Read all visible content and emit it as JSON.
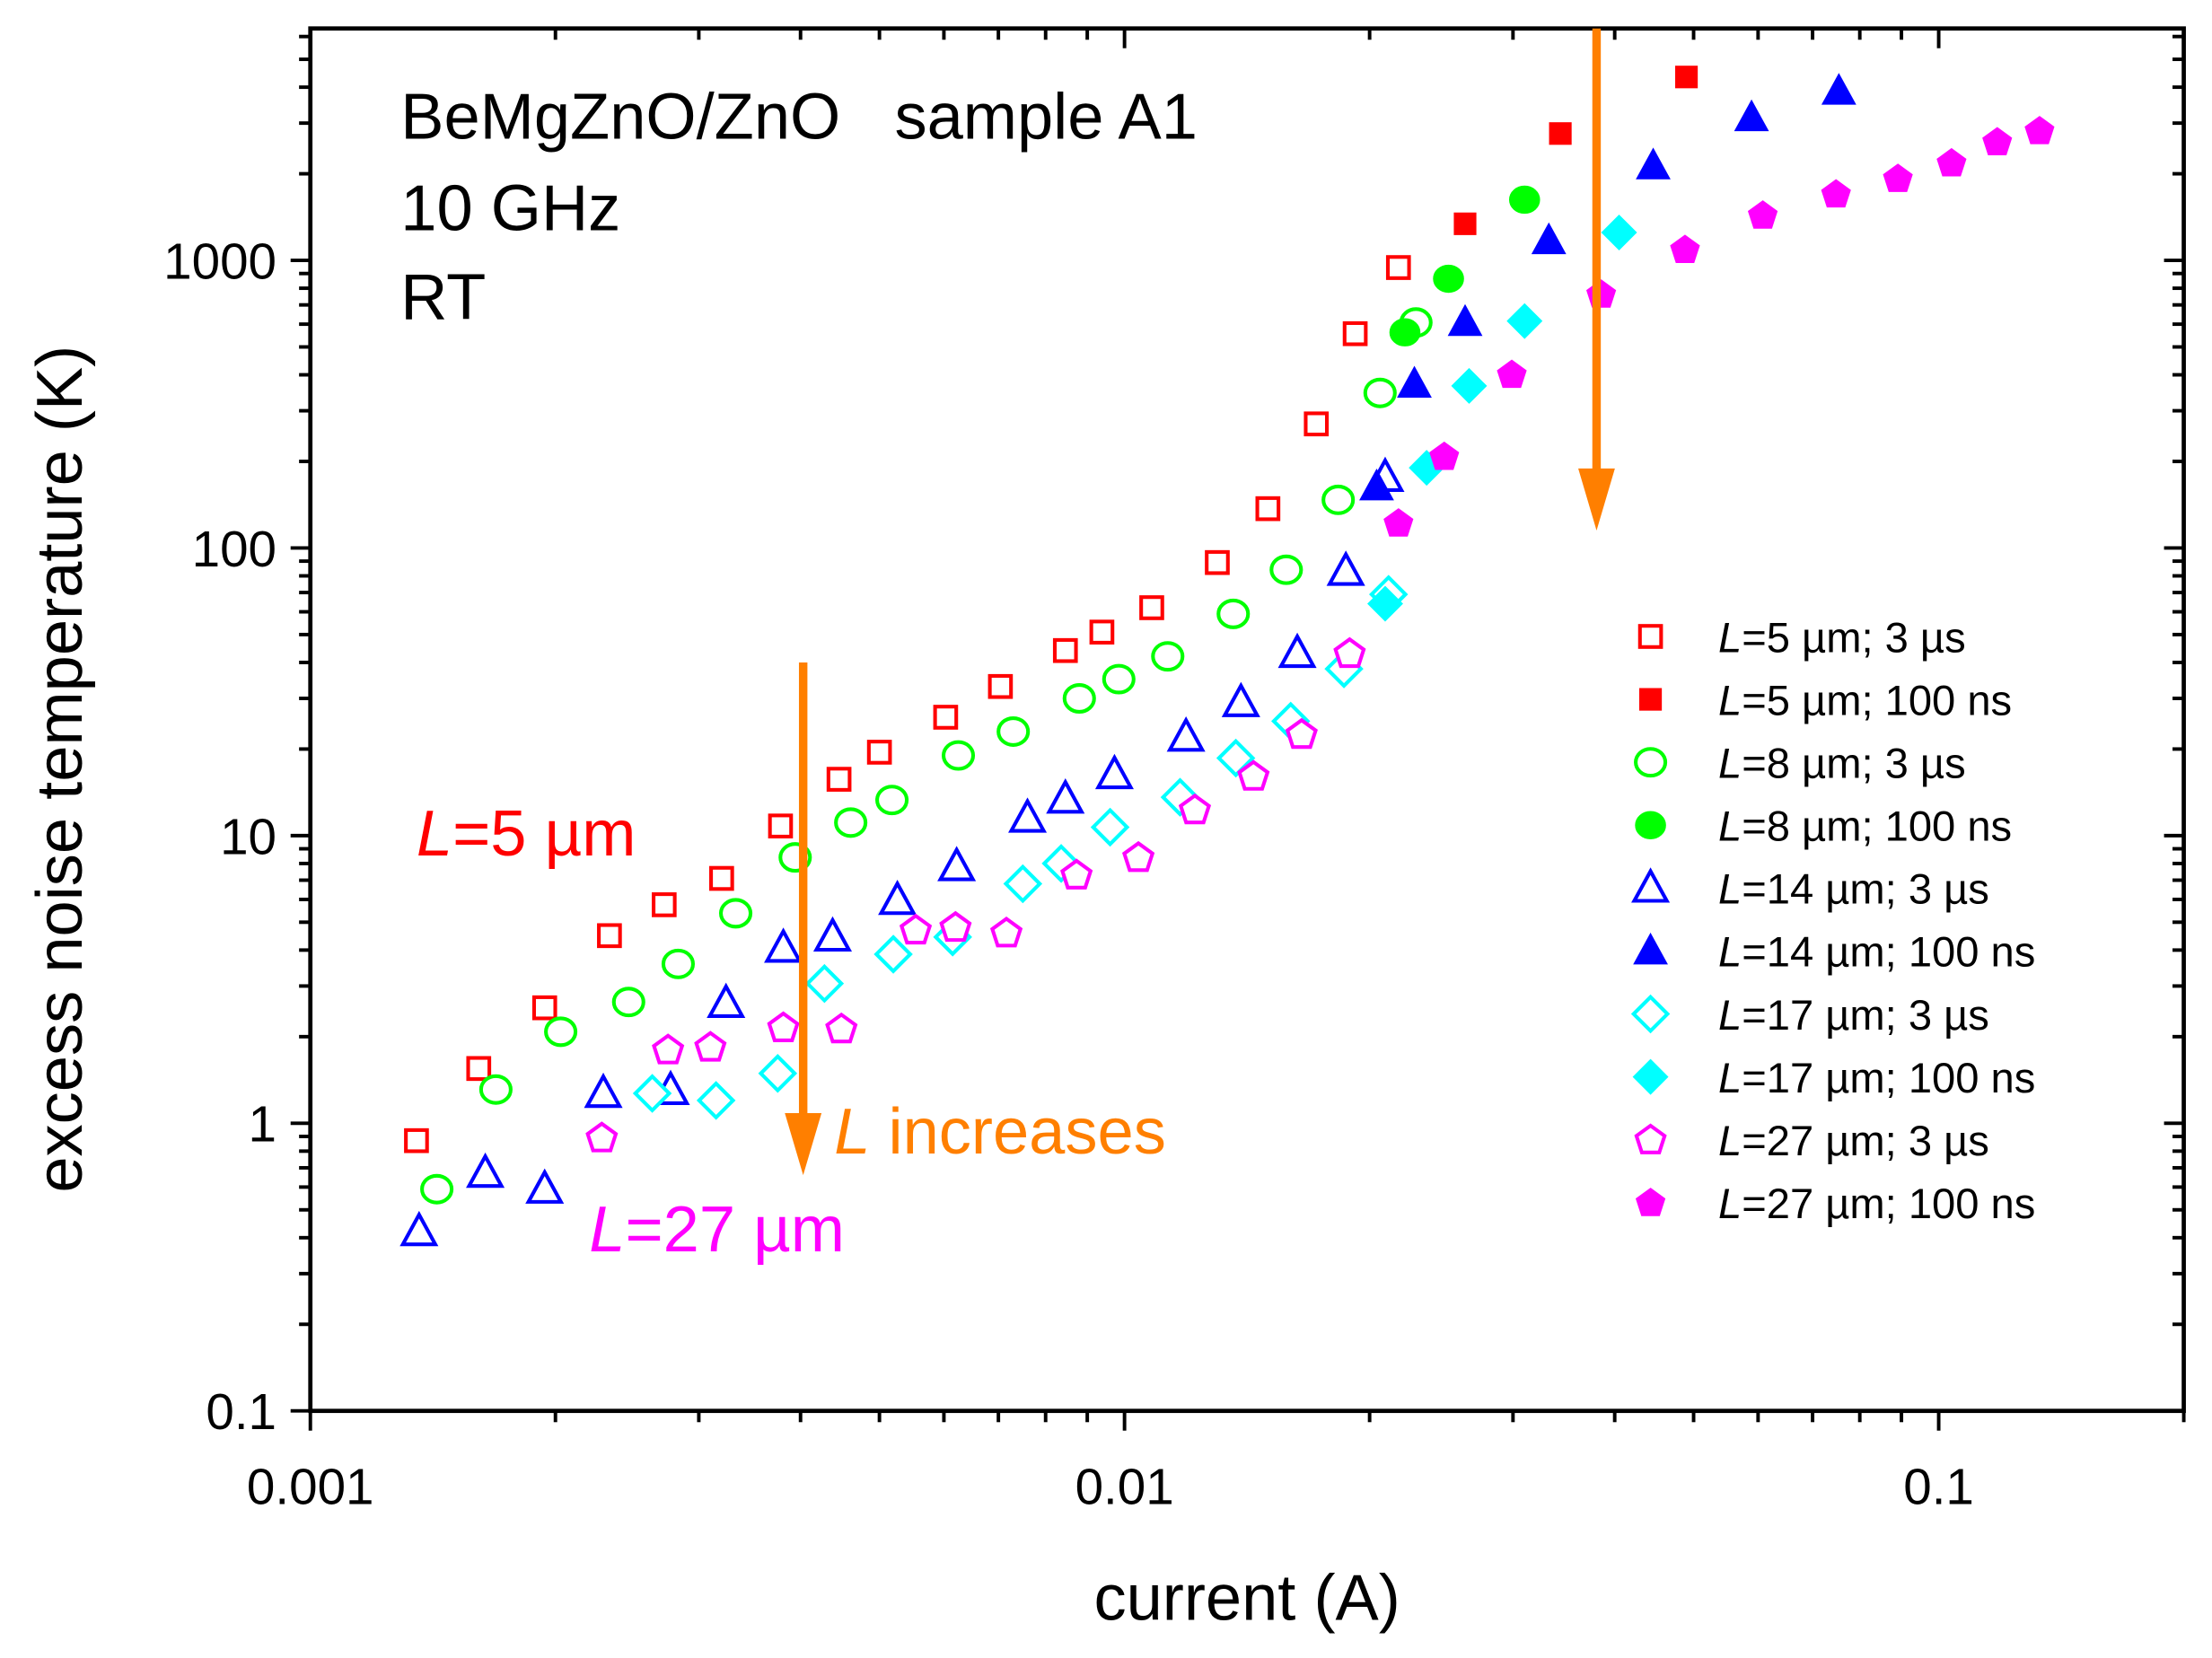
{
  "chart_data": {
    "type": "scatter",
    "xlabel": "current (A)",
    "ylabel": "excess noise temperature (K)",
    "xscale": "log",
    "yscale": "log",
    "xlim": [
      0.001,
      0.2
    ],
    "ylim": [
      0.1,
      6400
    ],
    "xticks": [
      {
        "v": 0.001,
        "label": "0.001"
      },
      {
        "v": 0.01,
        "label": "0.01"
      },
      {
        "v": 0.1,
        "label": "0.1"
      }
    ],
    "yticks": [
      {
        "v": 0.1,
        "label": "0.1"
      },
      {
        "v": 1,
        "label": "1"
      },
      {
        "v": 10,
        "label": "10"
      },
      {
        "v": 100,
        "label": "100"
      },
      {
        "v": 1000,
        "label": "1000"
      }
    ],
    "grid": false,
    "legend_position": "right",
    "title_lines": [
      "BeMgZnO/ZnO  sample A1",
      "10 GHz",
      "RT"
    ],
    "annotations": [
      {
        "italic": "L",
        "text": "=5 µm",
        "color": "#ff0000",
        "x": 0.00135,
        "y": 10
      },
      {
        "italic": "L",
        "text": " increases",
        "color": "#ff7f00",
        "x": 0.0044,
        "y": 0.92
      },
      {
        "italic": "L",
        "text": "=27 µm",
        "color": "#ff00ff",
        "x": 0.0022,
        "y": 0.42
      }
    ],
    "arrows": [
      {
        "x": 0.00403,
        "y_from": 40,
        "y_to": 0.66,
        "color": "#ff7f00"
      },
      {
        "x": 0.038,
        "y_from": 6400,
        "y_to": 115,
        "color": "#ff7f00"
      }
    ],
    "series": [
      {
        "name": "L=5 µm; 3 µs",
        "marker": "square",
        "filled": false,
        "color": "#ff0000",
        "x": [
          0.00135,
          0.00161,
          0.00194,
          0.00233,
          0.00272,
          0.0032,
          0.00378,
          0.00446,
          0.005,
          0.00603,
          0.00704,
          0.00846,
          0.00938,
          0.0108,
          0.013,
          0.015,
          0.0172,
          0.0192,
          0.0217
        ],
        "y": [
          0.87,
          1.55,
          2.52,
          4.49,
          5.75,
          7.1,
          10.8,
          15.7,
          19.5,
          25.8,
          33,
          44,
          51,
          62,
          89,
          137,
          270,
          556,
          944
        ]
      },
      {
        "name": "L=5 µm; 100 ns",
        "marker": "square",
        "filled": true,
        "color": "#ff0000",
        "x": [
          0.0262,
          0.0343,
          0.049
        ],
        "y": [
          1340,
          2760,
          4340
        ]
      },
      {
        "name": "L=8 µm; 3 µs",
        "marker": "circle",
        "filled": false,
        "color": "#00ff00",
        "x": [
          0.00143,
          0.00169,
          0.00203,
          0.00246,
          0.00283,
          0.00333,
          0.00394,
          0.00461,
          0.00518,
          0.00625,
          0.0073,
          0.0088,
          0.00984,
          0.0113,
          0.0136,
          0.0158,
          0.0183,
          0.0206,
          0.0228
        ],
        "y": [
          0.59,
          1.31,
          2.08,
          2.64,
          3.58,
          5.37,
          8.4,
          11.1,
          13.3,
          19,
          23,
          30,
          35,
          42,
          59,
          84,
          147,
          346,
          608
        ]
      },
      {
        "name": "L=8 µm; 100 ns",
        "marker": "circle",
        "filled": true,
        "color": "#00ff00",
        "x": [
          0.0221,
          0.025,
          0.031
        ],
        "y": [
          562,
          863,
          1625
        ]
      },
      {
        "name": "L=14 µm; 3 µs",
        "marker": "triangle",
        "filled": false,
        "color": "#0000ff",
        "x": [
          0.00136,
          0.00164,
          0.00194,
          0.00229,
          0.00277,
          0.00324,
          0.00381,
          0.00438,
          0.00526,
          0.00622,
          0.0076,
          0.00846,
          0.00972,
          0.0119,
          0.0139,
          0.0163,
          0.0187,
          0.0209
        ],
        "y": [
          0.42,
          0.67,
          0.59,
          1.27,
          1.3,
          2.61,
          4.06,
          4.44,
          5.95,
          7.8,
          11.5,
          13.4,
          16.3,
          22,
          29,
          43,
          83,
          176
        ]
      },
      {
        "name": "L=14 µm; 100 ns",
        "marker": "triangle",
        "filled": true,
        "color": "#0000ff",
        "x": [
          0.0204,
          0.0227,
          0.0262,
          0.0332,
          0.0446,
          0.0589,
          0.0754
        ],
        "y": [
          163,
          371,
          608,
          1170,
          2130,
          3130,
          3870
        ]
      },
      {
        "name": "L=17 µm; 3 µs",
        "marker": "diamond",
        "filled": false,
        "color": "#00ffff",
        "x": [
          0.00263,
          0.00315,
          0.00375,
          0.00428,
          0.0052,
          0.00615,
          0.0075,
          0.00836,
          0.0096,
          0.0117,
          0.0137,
          0.016,
          0.0186,
          0.0211
        ],
        "y": [
          1.27,
          1.2,
          1.49,
          3.06,
          3.87,
          4.44,
          6.8,
          8.0,
          10.7,
          13.6,
          18.6,
          25,
          38,
          69
        ]
      },
      {
        "name": "L=17 µm; 100 ns",
        "marker": "diamond",
        "filled": true,
        "color": "#00ffff",
        "x": [
          0.0209,
          0.0235,
          0.0265,
          0.031,
          0.0405
        ],
        "y": [
          64,
          190,
          366,
          615,
          1250
        ]
      },
      {
        "name": "L=27 µm; 3 µs",
        "marker": "pentagon",
        "filled": false,
        "color": "#ff00ff",
        "x": [
          0.00228,
          0.00275,
          0.0031,
          0.00381,
          0.00449,
          0.00554,
          0.0062,
          0.00716,
          0.00873,
          0.0104,
          0.0122,
          0.0144,
          0.0165,
          0.0189
        ],
        "y": [
          0.89,
          1.8,
          1.84,
          2.15,
          2.13,
          4.7,
          4.8,
          4.59,
          7.3,
          8.4,
          12.3,
          16.1,
          22.5,
          43
        ]
      },
      {
        "name": "L=27 µm; 100 ns",
        "marker": "pentagon",
        "filled": true,
        "color": "#ff00ff",
        "x": [
          0.0217,
          0.0247,
          0.0299,
          0.0385,
          0.0488,
          0.0608,
          0.0748,
          0.0891,
          0.1037,
          0.118,
          0.133
        ],
        "y": [
          122,
          208,
          401,
          762,
          1090,
          1435,
          1700,
          1925,
          2180,
          2580,
          2820
        ]
      }
    ]
  }
}
